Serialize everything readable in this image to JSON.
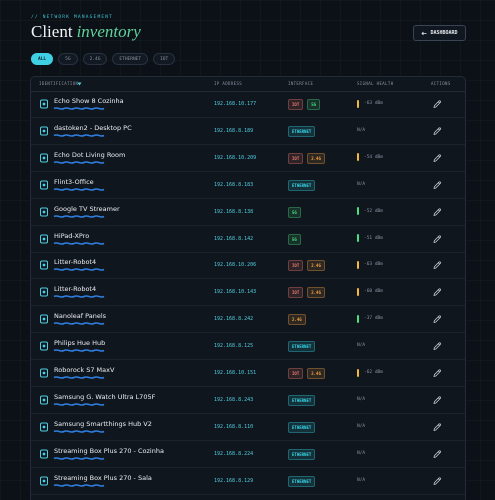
{
  "header": {
    "eyebrow": "// NETWORK MANAGEMENT",
    "title": "Client",
    "title_accent": "inventory",
    "button": "DASHBOARD"
  },
  "filters": [
    "ALL",
    "5G",
    "2.4G",
    "ETHERNET",
    "IOT"
  ],
  "active_filter": 0,
  "tag_colors": {
    "IOT": "#f07a6a",
    "5G": "#4ade80",
    "2.4G": "#f5a142",
    "ETHERNET": "#38d6e8"
  },
  "table": {
    "columns": [
      "IDENTIFICATION",
      "IP ADDRESS",
      "INTERFACE",
      "SIGNAL HEALTH",
      "ACTIONS"
    ],
    "rows": [
      {
        "name": "Echo Show 8 Cozinha",
        "ip": "192.168.10.177",
        "interfaces": [
          "IOT",
          "5G"
        ],
        "signal": "-63 dBm",
        "signal_color": "#f5b83d"
      },
      {
        "name": "dastoken2 - Desktop PC",
        "ip": "192.168.8.189",
        "interfaces": [
          "ETHERNET"
        ],
        "signal": "N/A"
      },
      {
        "name": "Echo Dot Living Room",
        "ip": "192.168.10.209",
        "interfaces": [
          "IOT",
          "2.4G"
        ],
        "signal": "-54 dBm",
        "signal_color": "#f5b83d"
      },
      {
        "name": "Flint3-Office",
        "ip": "192.168.8.183",
        "interfaces": [
          "ETHERNET"
        ],
        "signal": "N/A"
      },
      {
        "name": "Google TV Streamer",
        "ip": "192.168.8.138",
        "interfaces": [
          "5G"
        ],
        "signal": "-52 dBm",
        "signal_color": "#4ade80"
      },
      {
        "name": "HiPad-XPro",
        "ip": "192.168.8.142",
        "interfaces": [
          "5G"
        ],
        "signal": "-51 dBm",
        "signal_color": "#4ade80"
      },
      {
        "name": "Litter-Robot4",
        "ip": "192.168.10.206",
        "interfaces": [
          "IOT",
          "2.4G"
        ],
        "signal": "-63 dBm",
        "signal_color": "#f5b83d"
      },
      {
        "name": "Litter-Robot4",
        "ip": "192.168.10.143",
        "interfaces": [
          "IOT",
          "2.4G"
        ],
        "signal": "-60 dBm",
        "signal_color": "#f5b83d"
      },
      {
        "name": "Nanoleaf Panels",
        "ip": "192.168.8.242",
        "interfaces": [
          "2.4G"
        ],
        "signal": "-37 dBm",
        "signal_color": "#4ade80"
      },
      {
        "name": "Philips Hue Hub",
        "ip": "192.168.8.125",
        "interfaces": [
          "ETHERNET"
        ],
        "signal": "N/A"
      },
      {
        "name": "Roborock S7 MaxV",
        "ip": "192.168.10.151",
        "interfaces": [
          "IOT",
          "2.4G"
        ],
        "signal": "-62 dBm",
        "signal_color": "#f5b83d"
      },
      {
        "name": "Samsung G. Watch Ultra L705F",
        "ip": "192.168.8.243",
        "interfaces": [
          "ETHERNET"
        ],
        "signal": "N/A"
      },
      {
        "name": "Samsung Smartthings Hub V2",
        "ip": "192.168.8.110",
        "interfaces": [
          "ETHERNET"
        ],
        "signal": "N/A"
      },
      {
        "name": "Streaming Box Plus 270 - Cozinha",
        "ip": "192.168.8.224",
        "interfaces": [
          "ETHERNET"
        ],
        "signal": "N/A"
      },
      {
        "name": "Streaming Box Plus 270 - Sala",
        "ip": "192.168.8.129",
        "interfaces": [
          "ETHERNET"
        ],
        "signal": "N/A"
      }
    ]
  }
}
